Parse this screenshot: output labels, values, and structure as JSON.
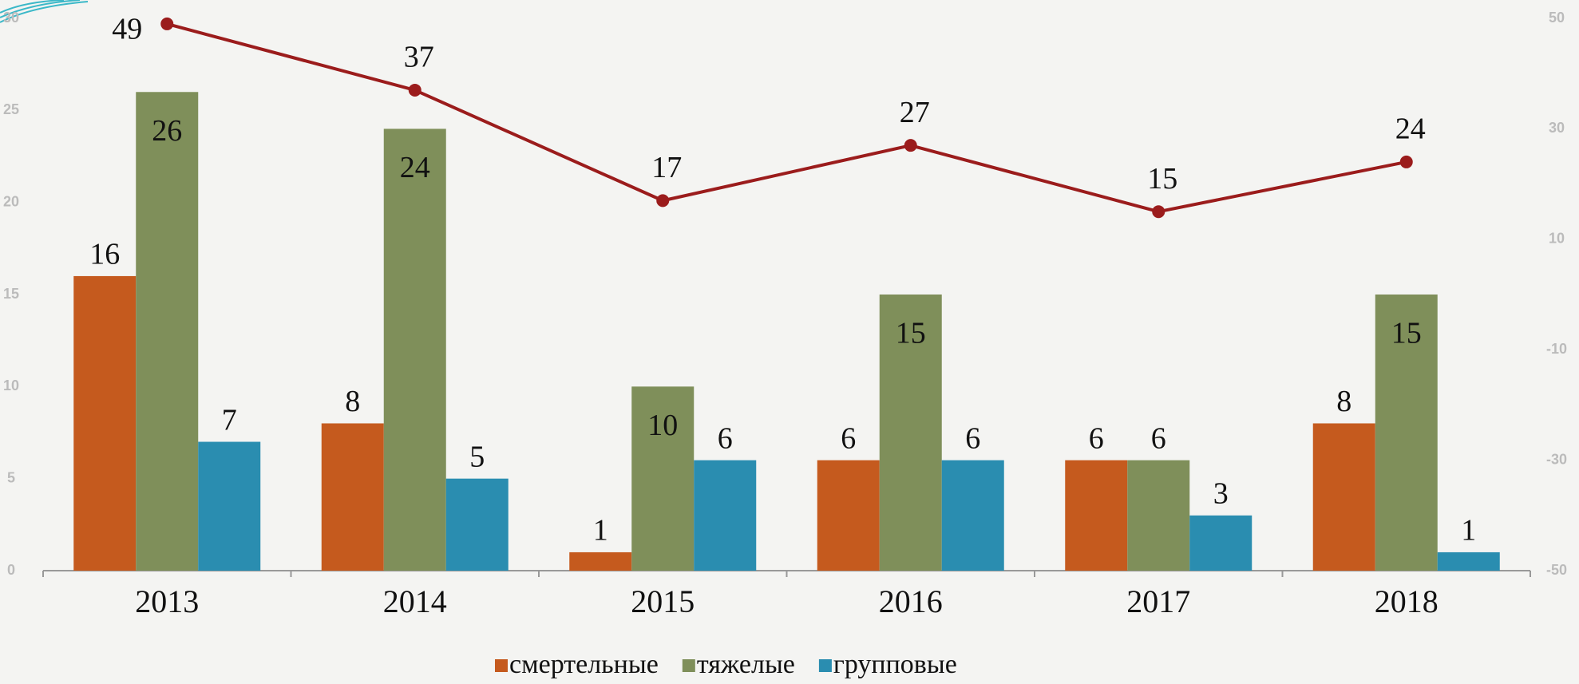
{
  "chart_data": {
    "type": "bar",
    "categories": [
      "2013",
      "2014",
      "2015",
      "2016",
      "2017",
      "2018"
    ],
    "series": [
      {
        "name": "смертельные",
        "color": "#c55a1e",
        "values": [
          16,
          8,
          1,
          6,
          6,
          8
        ]
      },
      {
        "name": "тяжелые",
        "color": "#7f8f5a",
        "values": [
          26,
          24,
          10,
          15,
          6,
          15
        ]
      },
      {
        "name": "групповые",
        "color": "#2a8db0",
        "values": [
          7,
          5,
          6,
          6,
          3,
          1
        ]
      },
      {
        "type": "line",
        "axis": "y2",
        "color": "#9b1c1c",
        "values": [
          49,
          37,
          17,
          27,
          15,
          24
        ]
      }
    ],
    "ylim": [
      0,
      30
    ],
    "yticks": [
      0,
      5,
      10,
      15,
      20,
      25,
      30
    ],
    "y2lim": [
      -50,
      50
    ],
    "y2ticks": [
      -50,
      -30,
      -10,
      10,
      30,
      50
    ],
    "legend": "bottom"
  }
}
